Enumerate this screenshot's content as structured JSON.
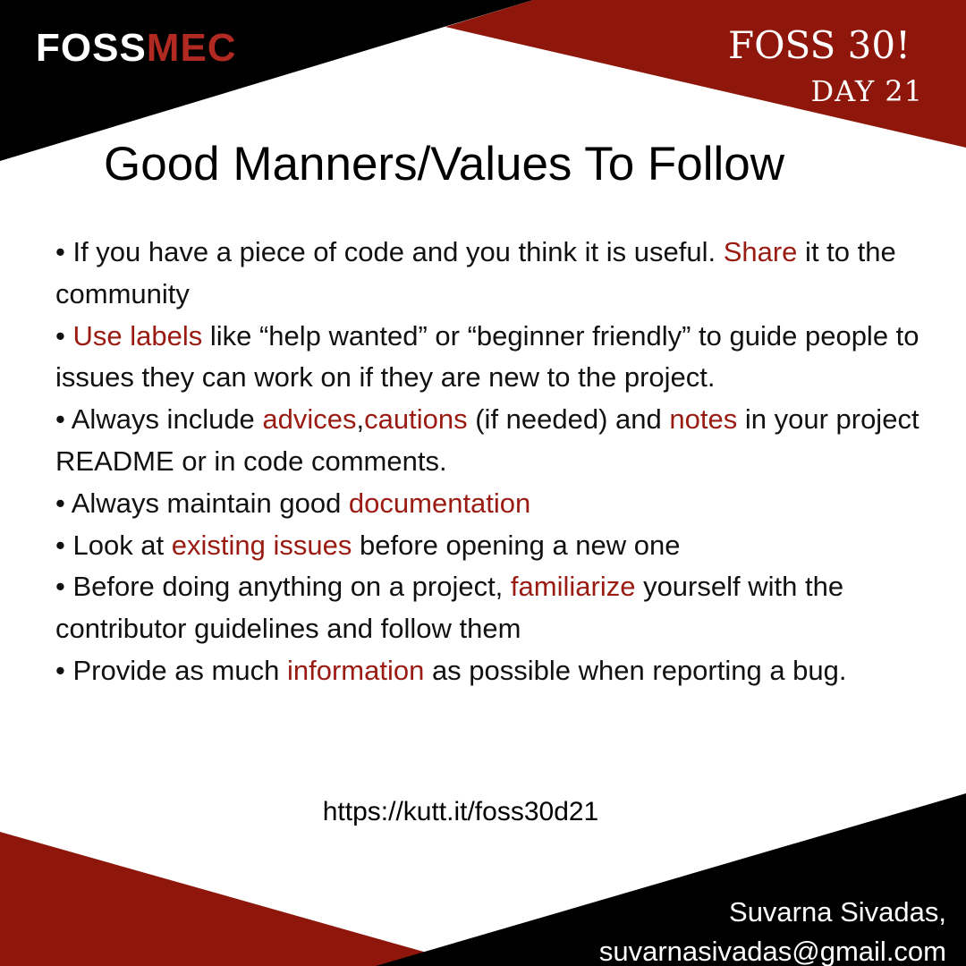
{
  "brand": {
    "logo_part1": "FOSS",
    "logo_part2": "MEC"
  },
  "event": {
    "title": "FOSS 30!",
    "day": "DAY 21"
  },
  "heading": "Good Manners/Values To Follow",
  "bullets": [
    [
      {
        "text": "• If you have a piece of code and you think it is useful. "
      },
      {
        "text": "Share",
        "hl": true
      },
      {
        "text": " it to the community"
      }
    ],
    [
      {
        "text": "• "
      },
      {
        "text": "Use labels",
        "hl": true
      },
      {
        "text": " like “help wanted” or “beginner friendly” to guide people to issues they can work on if they are new to the project."
      }
    ],
    [
      {
        "text": "• Always include "
      },
      {
        "text": "advices",
        "hl": true
      },
      {
        "text": ","
      },
      {
        "text": "cautions",
        "hl": true
      },
      {
        "text": " (if needed) and "
      },
      {
        "text": "notes",
        "hl": true
      },
      {
        "text": " in your project   README or in code comments."
      }
    ],
    [
      {
        "text": "• Always maintain good "
      },
      {
        "text": "documentation",
        "hl": true
      }
    ],
    [
      {
        "text": "• Look at "
      },
      {
        "text": "existing issues",
        "hl": true
      },
      {
        "text": " before opening a new one"
      }
    ],
    [
      {
        "text": "• Before doing anything on a project, "
      },
      {
        "text": "familiarize",
        "hl": true
      },
      {
        "text": " yourself with the contributor guidelines and follow them"
      }
    ],
    [
      {
        "text": "• Provide as much "
      },
      {
        "text": "information",
        "hl": true
      },
      {
        "text": " as possible when reporting a bug."
      }
    ]
  ],
  "link": "https://kutt.it/foss30d21",
  "author": {
    "name": "Suvarna Sivadas,",
    "email": "suvarnasivadas@gmail.com"
  },
  "colors": {
    "accent": "#9a1b12",
    "band_red": "#8e160b",
    "band_black": "#000000"
  }
}
